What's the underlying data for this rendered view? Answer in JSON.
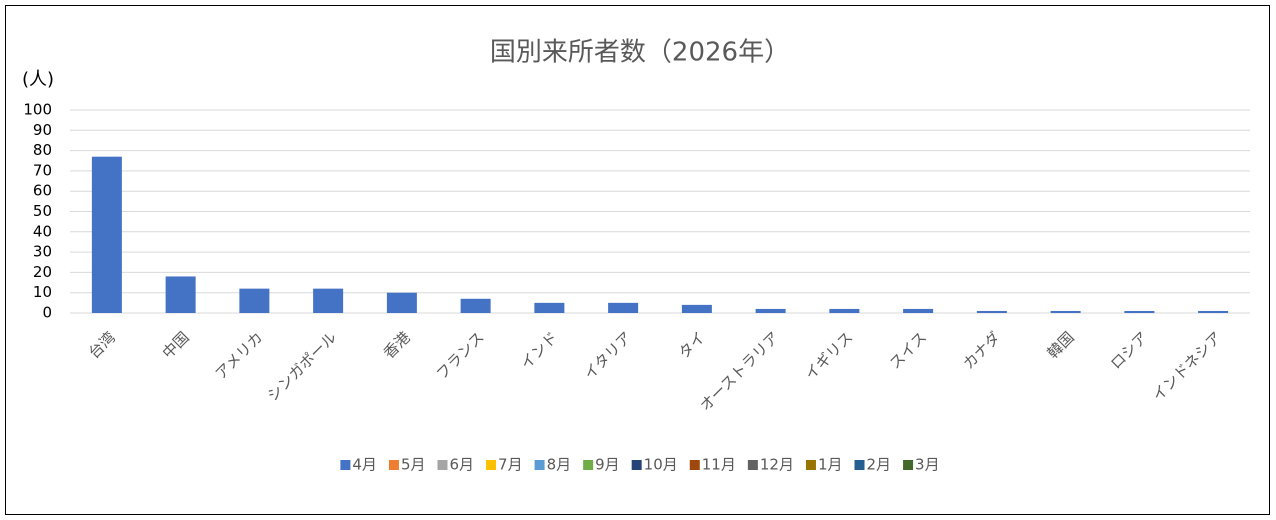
{
  "chart_data": {
    "type": "bar",
    "title": "国別来所者数（2026年）",
    "y_label": "(人)",
    "categories": [
      "台湾",
      "中国",
      "アメリカ",
      "シンガポール",
      "香港",
      "フランス",
      "インド",
      "イタリア",
      "タイ",
      "オーストラリア",
      "イギリス",
      "スイス",
      "カナダ",
      "韓国",
      "ロシア",
      "インドネシア"
    ],
    "series": [
      {
        "name": "4月",
        "color": "#4472c4",
        "values": [
          77,
          18,
          12,
          12,
          10,
          7,
          5,
          5,
          4,
          2,
          2,
          2,
          1,
          1,
          1,
          1
        ]
      },
      {
        "name": "5月",
        "color": "#ed7d31",
        "values": [
          null,
          null,
          null,
          null,
          null,
          null,
          null,
          null,
          null,
          null,
          null,
          null,
          null,
          null,
          null,
          null
        ]
      },
      {
        "name": "6月",
        "color": "#a5a5a5",
        "values": [
          null,
          null,
          null,
          null,
          null,
          null,
          null,
          null,
          null,
          null,
          null,
          null,
          null,
          null,
          null,
          null
        ]
      },
      {
        "name": "7月",
        "color": "#ffc000",
        "values": [
          null,
          null,
          null,
          null,
          null,
          null,
          null,
          null,
          null,
          null,
          null,
          null,
          null,
          null,
          null,
          null
        ]
      },
      {
        "name": "8月",
        "color": "#5b9bd5",
        "values": [
          null,
          null,
          null,
          null,
          null,
          null,
          null,
          null,
          null,
          null,
          null,
          null,
          null,
          null,
          null,
          null
        ]
      },
      {
        "name": "9月",
        "color": "#70ad47",
        "values": [
          null,
          null,
          null,
          null,
          null,
          null,
          null,
          null,
          null,
          null,
          null,
          null,
          null,
          null,
          null,
          null
        ]
      },
      {
        "name": "10月",
        "color": "#264478",
        "values": [
          null,
          null,
          null,
          null,
          null,
          null,
          null,
          null,
          null,
          null,
          null,
          null,
          null,
          null,
          null,
          null
        ]
      },
      {
        "name": "11月",
        "color": "#9e480e",
        "values": [
          null,
          null,
          null,
          null,
          null,
          null,
          null,
          null,
          null,
          null,
          null,
          null,
          null,
          null,
          null,
          null
        ]
      },
      {
        "name": "12月",
        "color": "#636363",
        "values": [
          null,
          null,
          null,
          null,
          null,
          null,
          null,
          null,
          null,
          null,
          null,
          null,
          null,
          null,
          null,
          null
        ]
      },
      {
        "name": "1月",
        "color": "#997300",
        "values": [
          null,
          null,
          null,
          null,
          null,
          null,
          null,
          null,
          null,
          null,
          null,
          null,
          null,
          null,
          null,
          null
        ]
      },
      {
        "name": "2月",
        "color": "#255e91",
        "values": [
          null,
          null,
          null,
          null,
          null,
          null,
          null,
          null,
          null,
          null,
          null,
          null,
          null,
          null,
          null,
          null
        ]
      },
      {
        "name": "3月",
        "color": "#43682b",
        "values": [
          null,
          null,
          null,
          null,
          null,
          null,
          null,
          null,
          null,
          null,
          null,
          null,
          null,
          null,
          null,
          null
        ]
      }
    ],
    "ylim": [
      0,
      100
    ],
    "yticks": [
      0,
      10,
      20,
      30,
      40,
      50,
      60,
      70,
      80,
      90,
      100
    ],
    "grid": true,
    "legend": "bottom"
  }
}
